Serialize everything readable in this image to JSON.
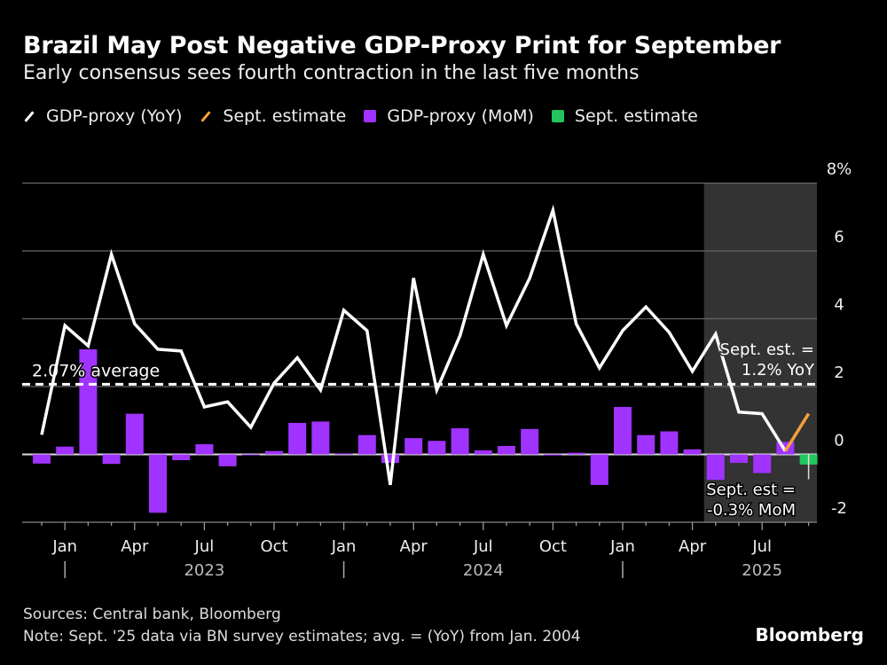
{
  "header": {
    "title": "Brazil May Post Negative GDP-Proxy Print for September",
    "subtitle": "Early consensus sees fourth contraction in the last five months"
  },
  "legend": [
    {
      "label": "GDP-proxy (YoY)",
      "kind": "line",
      "color": "#ffffff"
    },
    {
      "label": "Sept. estimate",
      "kind": "line",
      "color": "#f5a03a"
    },
    {
      "label": "GDP-proxy (MoM)",
      "kind": "square",
      "color": "#a033ff"
    },
    {
      "label": "Sept. estimate",
      "kind": "square",
      "color": "#22c55e"
    }
  ],
  "footer": {
    "sources": "Sources: Central bank, Bloomberg",
    "note": "Note: Sept. '25 data via BN survey estimates; avg. = (YoY) from Jan. 2004",
    "logo": "Bloomberg"
  },
  "chart_data": {
    "type": "line+bar",
    "x_start": "2022-12",
    "x_end": "2025-09",
    "months": [
      "2022-12",
      "2023-01",
      "2023-02",
      "2023-03",
      "2023-04",
      "2023-05",
      "2023-06",
      "2023-07",
      "2023-08",
      "2023-09",
      "2023-10",
      "2023-11",
      "2023-12",
      "2024-01",
      "2024-02",
      "2024-03",
      "2024-04",
      "2024-05",
      "2024-06",
      "2024-07",
      "2024-08",
      "2024-09",
      "2024-10",
      "2024-11",
      "2024-12",
      "2025-01",
      "2025-02",
      "2025-03",
      "2025-04",
      "2025-05",
      "2025-06",
      "2025-07",
      "2025-08"
    ],
    "series": [
      {
        "name": "GDP-proxy (YoY)",
        "type": "line",
        "color": "#ffffff",
        "values": [
          0.58,
          3.8,
          3.2,
          5.9,
          3.85,
          3.1,
          3.05,
          1.4,
          1.55,
          0.8,
          2.1,
          2.85,
          1.9,
          4.25,
          3.65,
          -0.9,
          5.2,
          1.9,
          3.5,
          5.9,
          3.8,
          5.2,
          7.2,
          3.85,
          2.55,
          3.65,
          4.35,
          3.6,
          2.45,
          3.55,
          1.25,
          1.2,
          0.1
        ]
      },
      {
        "name": "GDP-proxy (MoM)",
        "type": "bar",
        "color": "#a033ff",
        "values": [
          -0.27,
          0.23,
          3.1,
          -0.28,
          1.2,
          -1.72,
          -0.17,
          0.3,
          -0.35,
          -0.02,
          0.1,
          0.93,
          0.97,
          0.03,
          0.57,
          -0.25,
          0.48,
          0.4,
          0.77,
          0.12,
          0.25,
          0.75,
          -0.03,
          0.05,
          -0.9,
          1.4,
          0.57,
          0.68,
          0.15,
          -0.75,
          -0.25,
          -0.55,
          0.37
        ]
      },
      {
        "name": "Sept. estimate",
        "type": "line",
        "color": "#f5a03a",
        "x": [
          "2025-08",
          "2025-09"
        ],
        "values": [
          0.1,
          1.2
        ]
      },
      {
        "name": "Sept. estimate",
        "type": "bar",
        "color": "#22c55e",
        "x": [
          "2025-09"
        ],
        "values": [
          -0.3
        ]
      }
    ],
    "average": {
      "value": 2.07,
      "label": "2.07% average"
    },
    "shaded_range": [
      "2025-05",
      "2025-09"
    ],
    "annotations": {
      "yoy_line1": "Sept. est. =",
      "yoy_line2": "1.2% YoY",
      "mom_line1": "Sept. est =",
      "mom_line2": "-0.3% MoM"
    },
    "ylim": [
      -2,
      8
    ],
    "y_ticks": [
      -2,
      0,
      2,
      4,
      6,
      8
    ],
    "y_tick_labels": [
      "-2",
      "0",
      "2",
      "4",
      "6",
      "8%"
    ],
    "x_tick_labels": [
      {
        "month": "2023-01",
        "label": "Jan"
      },
      {
        "month": "2023-04",
        "label": "Apr"
      },
      {
        "month": "2023-07",
        "label": "Jul"
      },
      {
        "month": "2023-10",
        "label": "Oct"
      },
      {
        "month": "2024-01",
        "label": "Jan"
      },
      {
        "month": "2024-04",
        "label": "Apr"
      },
      {
        "month": "2024-07",
        "label": "Jul"
      },
      {
        "month": "2024-10",
        "label": "Oct"
      },
      {
        "month": "2025-01",
        "label": "Jan"
      },
      {
        "month": "2025-04",
        "label": "Apr"
      },
      {
        "month": "2025-07",
        "label": "Jul"
      }
    ],
    "year_labels": [
      {
        "month": "2023-07",
        "label": "2023"
      },
      {
        "month": "2024-07",
        "label": "2024"
      },
      {
        "month": "2025-07",
        "label": "2025"
      }
    ],
    "grid": true,
    "legend_position": "top-left"
  }
}
